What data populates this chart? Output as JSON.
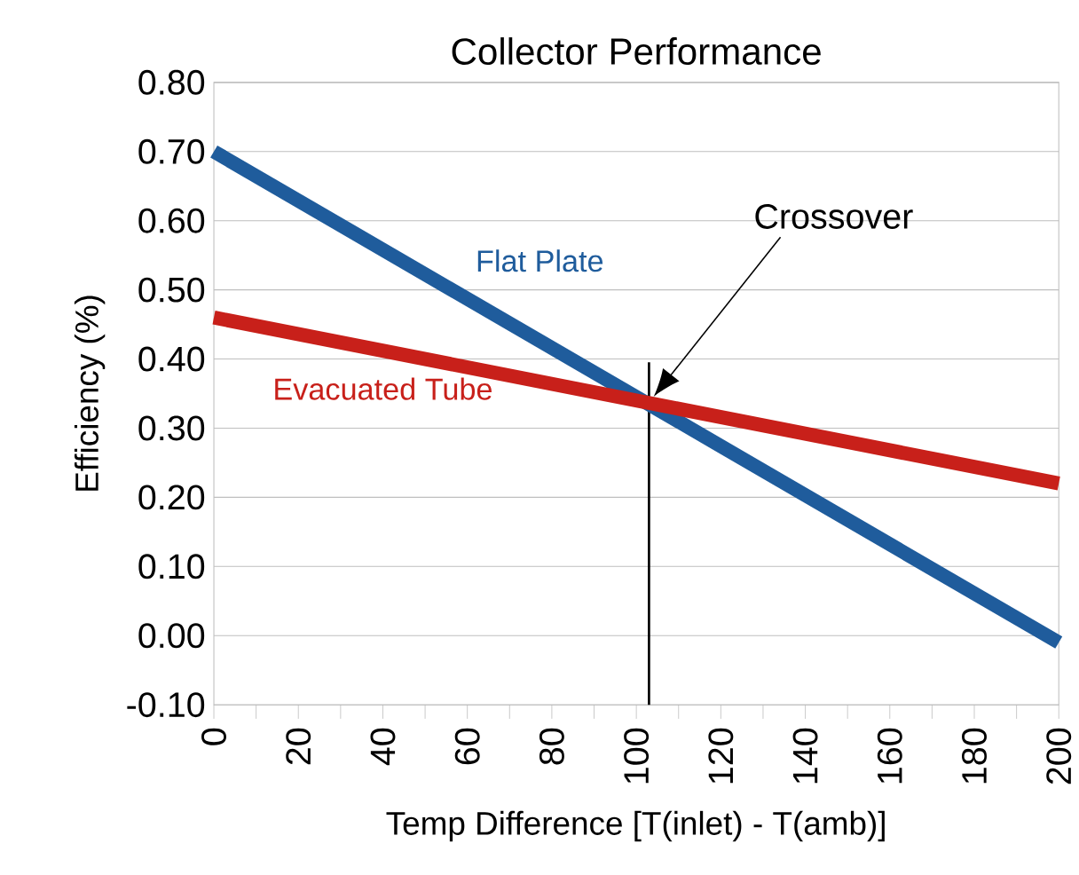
{
  "chart_data": {
    "type": "line",
    "title": "Collector Performance",
    "xlabel": "Temp Difference [T(inlet) - T(amb)]",
    "ylabel": "Efficiency (%)",
    "series": [
      {
        "name": "Flat Plate",
        "color": "#1f5c9c",
        "values": [
          0.7,
          -0.01
        ]
      },
      {
        "name": "Evacuated Tube",
        "color": "#c8201a",
        "values": [
          0.46,
          0.22
        ]
      }
    ],
    "x": [
      0,
      200
    ],
    "xlim": [
      0,
      200
    ],
    "xticks": [
      0,
      20,
      40,
      60,
      80,
      100,
      120,
      140,
      160,
      180,
      200
    ],
    "ylim": [
      -0.1,
      0.8
    ],
    "yticks": [
      {
        "value": -0.1,
        "label": "-0.10"
      },
      {
        "value": 0,
        "label": "0.00"
      },
      {
        "value": 0.1,
        "label": "0.10"
      },
      {
        "value": 0.2,
        "label": "0.20"
      },
      {
        "value": 0.3,
        "label": "0.30"
      },
      {
        "value": 0.4,
        "label": "0.40"
      },
      {
        "value": 0.5,
        "label": "0.50"
      },
      {
        "value": 0.6,
        "label": "0.60"
      },
      {
        "value": 0.7,
        "label": "0.70"
      },
      {
        "value": 0.8,
        "label": "0.80"
      }
    ],
    "ref_lines": [
      {
        "axis": "x",
        "value": 103,
        "color": "#000000"
      }
    ],
    "annotations": [
      "Crossover"
    ],
    "grid": "y",
    "marker": "none",
    "line_style": "solid"
  }
}
